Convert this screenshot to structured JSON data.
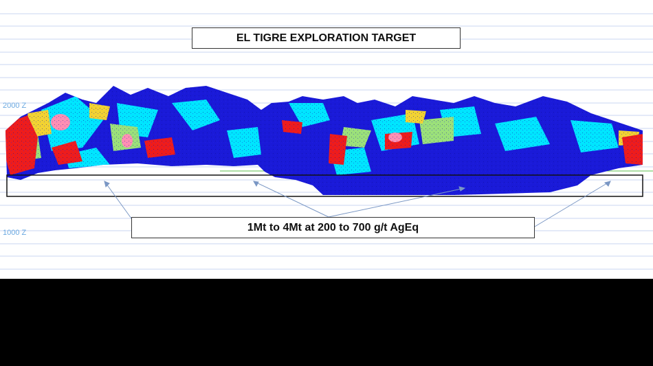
{
  "title": "EL TIGRE EXPLORATION TARGET",
  "caption": "1Mt to 4Mt at 200 to 700 g/t AgEq",
  "elevation_labels": {
    "upper": "2000 Z",
    "lower": "1000 Z"
  },
  "colors": {
    "background": "#ffffff",
    "gridline": "#c9d6f2",
    "grade_low": "#1a1ad8",
    "grade_mid_low": "#00e5ff",
    "grade_mid": "#9be07a",
    "grade_mid_high": "#f2d232",
    "grade_high": "#ee1c1c",
    "grade_very_high": "#ff8fb3",
    "target_outline": "#111111",
    "arrow": "#7a97c4",
    "reference_line": "#5bbf4e"
  }
}
